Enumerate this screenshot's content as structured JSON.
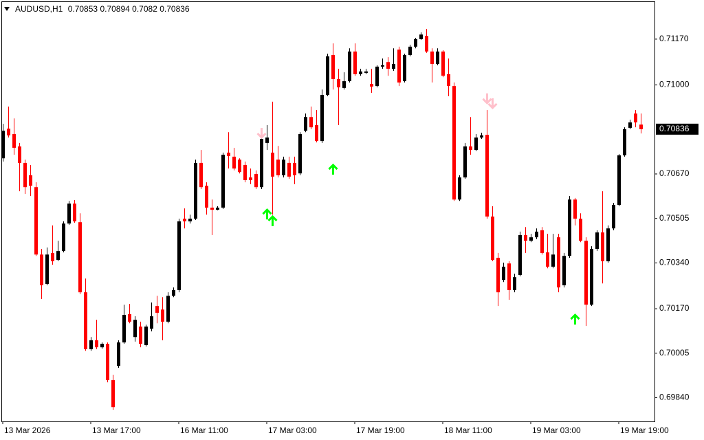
{
  "chart_data": {
    "type": "candlestick",
    "title": "AUDUSD,H1",
    "categories": [
      "13 Mar 2026",
      null,
      null,
      null,
      null,
      null,
      null,
      null,
      null,
      null,
      null,
      null,
      null,
      null,
      null,
      null,
      "13 Mar 17:00",
      null,
      null,
      null,
      null,
      null,
      null,
      null,
      null,
      null,
      null,
      null,
      null,
      null,
      null,
      null,
      "16 Mar 11:00",
      null,
      null,
      null,
      null,
      null,
      null,
      null,
      null,
      null,
      null,
      null,
      null,
      null,
      null,
      null,
      "17 Mar 03:00",
      null,
      null,
      null,
      null,
      null,
      null,
      null,
      null,
      null,
      null,
      null,
      null,
      null,
      null,
      null,
      "17 Mar 19:00",
      null,
      null,
      null,
      null,
      null,
      null,
      null,
      null,
      null,
      null,
      null,
      null,
      null,
      null,
      null,
      "18 Mar 11:00",
      null,
      null,
      null,
      null,
      null,
      null,
      null,
      null,
      null,
      null,
      null,
      null,
      null,
      null,
      null,
      "19 Mar 03:00",
      null,
      null,
      null,
      null,
      null,
      null,
      null,
      null,
      null,
      null,
      null,
      null,
      null,
      null,
      null,
      "19 Mar 19:00",
      null,
      null,
      null,
      null
    ],
    "open": [
      0.70728,
      0.70838,
      0.70818,
      0.70772,
      0.70711,
      0.70665,
      0.70621,
      0.70371,
      0.70262,
      0.70377,
      0.70351,
      0.70384,
      0.70486,
      0.7056,
      0.70491,
      0.70231,
      0.7002,
      0.70053,
      0.70027,
      0.7004,
      0.69905,
      0.69958,
      0.70045,
      0.7015,
      0.70065,
      0.70104,
      0.70035,
      0.70096,
      0.7018,
      0.70167,
      0.70122,
      0.70218,
      0.70239,
      0.70504,
      0.70494,
      0.70504,
      0.70711,
      0.70626,
      0.70545,
      0.70537,
      0.70545,
      0.70749,
      0.70734,
      0.70723,
      0.70703,
      0.70657,
      0.7067,
      0.70621,
      0.70785,
      0.70749,
      0.70723,
      0.70665,
      0.70711,
      0.70711,
      0.70672,
      0.7083,
      0.70881,
      0.70851,
      0.70792,
      0.70963,
      0.71111,
      0.71022,
      0.70989,
      0.71014,
      0.71124,
      0.7104,
      0.71045,
      0.71004,
      0.70996,
      0.71068,
      0.71085,
      0.7106,
      0.71131,
      0.71014,
      0.71111,
      0.71142,
      0.7117,
      0.71182,
      0.71124,
      0.71078,
      0.71124,
      0.7104,
      0.70996,
      0.70575,
      0.70657,
      0.70772,
      0.70759,
      0.70805,
      0.70815,
      0.70512,
      0.70359,
      0.70277,
      0.70338,
      0.70239,
      0.70295,
      0.70443,
      0.70422,
      0.70435,
      0.70461,
      0.70379,
      0.70326,
      0.70435,
      0.70257,
      0.70366,
      0.70575,
      0.70504,
      0.70422,
      0.70185,
      0.70392,
      0.70453,
      0.70346,
      0.70468,
      0.70555,
      0.70739,
      0.70841,
      0.70894,
      0.70853
    ],
    "high": [
      0.70856,
      0.7092,
      0.70876,
      0.70785,
      0.70723,
      0.70703,
      0.70639,
      0.70392,
      0.70397,
      0.70479,
      0.70422,
      0.70494,
      0.7057,
      0.70573,
      0.70524,
      0.70282,
      0.70065,
      0.70129,
      0.70045,
      0.70045,
      0.69925,
      0.70053,
      0.70185,
      0.70188,
      0.70142,
      0.70122,
      0.70111,
      0.70193,
      0.70218,
      0.70213,
      0.70231,
      0.70249,
      0.70504,
      0.70542,
      0.70519,
      0.70723,
      0.70759,
      0.70639,
      0.70575,
      0.7055,
      0.70749,
      0.70825,
      0.70767,
      0.70728,
      0.70716,
      0.7069,
      0.70683,
      0.70818,
      0.70851,
      0.70938,
      0.70774,
      0.70734,
      0.70734,
      0.70734,
      0.70825,
      0.70894,
      0.7092,
      0.70907,
      0.70983,
      0.71116,
      0.71154,
      0.7106,
      0.71047,
      0.71136,
      0.71154,
      0.7106,
      0.7106,
      0.7106,
      0.71073,
      0.71098,
      0.71103,
      0.71136,
      0.71142,
      0.71116,
      0.71149,
      0.71175,
      0.71195,
      0.71208,
      0.71136,
      0.71136,
      0.71129,
      0.71098,
      0.71009,
      0.70665,
      0.70785,
      0.70881,
      0.70818,
      0.70823,
      0.70907,
      0.7055,
      0.70377,
      0.70341,
      0.70346,
      0.703,
      0.70456,
      0.70473,
      0.70448,
      0.70468,
      0.70473,
      0.70448,
      0.70448,
      0.70448,
      0.70377,
      0.70588,
      0.70581,
      0.70524,
      0.70435,
      0.70402,
      0.70461,
      0.70606,
      0.70479,
      0.70563,
      0.70744,
      0.70843,
      0.70871,
      0.70907,
      0.70894
    ],
    "low": [
      0.70716,
      0.70805,
      0.70741,
      0.70606,
      0.70596,
      0.70588,
      0.70366,
      0.70206,
      0.70257,
      0.70333,
      0.70346,
      0.70379,
      0.70481,
      0.70489,
      0.70224,
      0.70014,
      0.70014,
      0.7002,
      0.70022,
      0.69897,
      0.69795,
      0.69951,
      0.7004,
      0.70116,
      0.70048,
      0.70027,
      0.7003,
      0.70086,
      0.70116,
      0.70053,
      0.70116,
      0.70213,
      0.70231,
      0.70468,
      0.70486,
      0.70499,
      0.70614,
      0.70519,
      0.70443,
      0.70535,
      0.7054,
      0.7069,
      0.70683,
      0.70672,
      0.70639,
      0.70632,
      0.70614,
      0.70614,
      0.70759,
      0.70519,
      0.70657,
      0.70657,
      0.70652,
      0.70632,
      0.70665,
      0.70825,
      0.70836,
      0.70787,
      0.70785,
      0.70958,
      0.70983,
      0.70851,
      0.70983,
      0.71009,
      0.71034,
      0.71034,
      0.7104,
      0.70971,
      0.70991,
      0.7106,
      0.71034,
      0.71052,
      0.70996,
      0.71009,
      0.71106,
      0.71136,
      0.71167,
      0.71119,
      0.71009,
      0.71073,
      0.71029,
      0.70958,
      0.7057,
      0.7057,
      0.70652,
      0.70741,
      0.70754,
      0.708,
      0.70504,
      0.70346,
      0.7018,
      0.70269,
      0.70203,
      0.70231,
      0.7029,
      0.70377,
      0.70417,
      0.70428,
      0.70371,
      0.7032,
      0.7032,
      0.70231,
      0.70249,
      0.70359,
      0.70479,
      0.70417,
      0.70106,
      0.7018,
      0.70384,
      0.70264,
      0.70341,
      0.70461,
      0.7055,
      0.70734,
      0.70836,
      0.70843,
      0.7082
    ],
    "close": [
      0.7083,
      0.70813,
      0.70767,
      0.70711,
      0.70621,
      0.70626,
      0.70371,
      0.70257,
      0.70371,
      0.70346,
      0.70384,
      0.70486,
      0.7056,
      0.70494,
      0.70231,
      0.7002,
      0.70053,
      0.70027,
      0.7004,
      0.69905,
      0.69805,
      0.70045,
      0.70147,
      0.70122,
      0.70129,
      0.7004,
      0.70104,
      0.70142,
      0.70155,
      0.70122,
      0.70218,
      0.70239,
      0.70494,
      0.70494,
      0.70504,
      0.70711,
      0.70621,
      0.70545,
      0.70537,
      0.70545,
      0.70741,
      0.70736,
      0.7069,
      0.70677,
      0.70647,
      0.70647,
      0.70621,
      0.708,
      0.70805,
      0.7066,
      0.70665,
      0.70723,
      0.7066,
      0.70665,
      0.70818,
      0.70881,
      0.70843,
      0.70792,
      0.70963,
      0.71106,
      0.71022,
      0.70991,
      0.71014,
      0.71124,
      0.7104,
      0.7105,
      0.7105,
      0.70994,
      0.71068,
      0.71073,
      0.7106,
      0.71078,
      0.71009,
      0.71111,
      0.71142,
      0.7117,
      0.71187,
      0.71124,
      0.71078,
      0.71124,
      0.71034,
      0.70996,
      0.70575,
      0.70657,
      0.70772,
      0.70759,
      0.70805,
      0.70813,
      0.70512,
      0.70351,
      0.70231,
      0.70326,
      0.70239,
      0.70287,
      0.70443,
      0.70422,
      0.70435,
      0.70456,
      0.70377,
      0.70326,
      0.70371,
      0.70249,
      0.70366,
      0.70575,
      0.70504,
      0.70422,
      0.70185,
      0.70392,
      0.70453,
      0.70346,
      0.70468,
      0.70555,
      0.70739,
      0.70836,
      0.70861,
      0.70861,
      0.70836
    ],
    "up_color": "#000000",
    "down_color": "#ff0000",
    "buy_signals": {
      "color": "#00ff00",
      "index": [
        48,
        49,
        60,
        104
      ],
      "price": [
        0.70537,
        0.70512,
        0.70703,
        0.70147
      ]
    },
    "sell_signals": {
      "color": "#ffc0cb",
      "index": [
        47,
        88,
        89
      ],
      "price": [
        0.70805,
        0.70933,
        0.70915
      ]
    },
    "ylim": [
      0.69752,
      0.7131
    ],
    "yticks": [
      {
        "value": 0.7117,
        "label": "0.71170"
      },
      {
        "value": 0.71,
        "label": "0.71000"
      },
      {
        "value": 0.7067,
        "label": "0.70670"
      },
      0.70505,
      {
        "value": 0.7034,
        "label": "0.70340"
      },
      {
        "value": 0.7017,
        "label": "0.70170"
      },
      0.70005,
      {
        "value": 0.6984,
        "label": "0.69840"
      }
    ]
  }
}
